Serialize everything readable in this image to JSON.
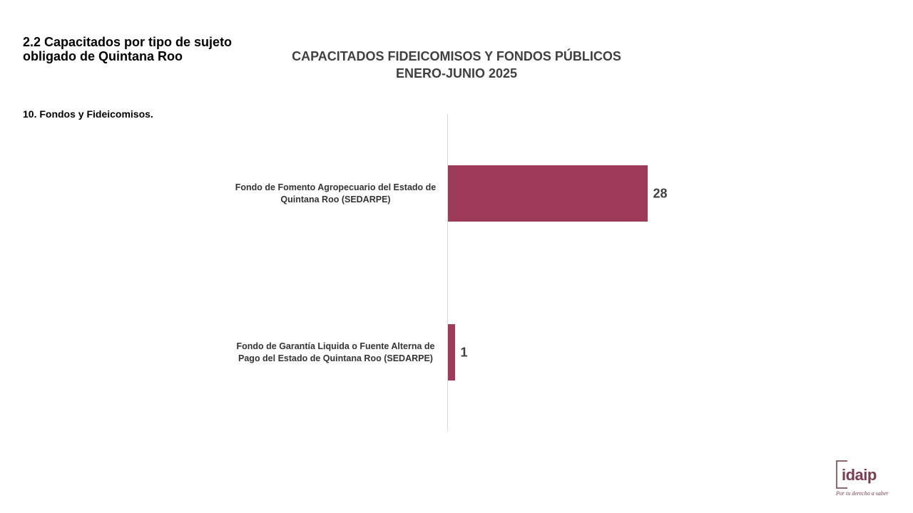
{
  "header": {
    "section_title": "2.2 Capacitados por tipo de sujeto obligado de Quintana Roo",
    "subsection": "10. Fondos y Fideicomisos."
  },
  "logo": {
    "name": "idaip",
    "tagline": "Por tu derecho a saber"
  },
  "chart_data": {
    "type": "bar",
    "orientation": "horizontal",
    "title_line1": "CAPACITADOS FIDEICOMISOS Y FONDOS PÚBLICOS",
    "title_line2": "ENERO-JUNIO 2025",
    "categories": [
      "Fondo de Fomento Agropecuario del Estado de Quintana Roo (SEDARPE)",
      "Fondo de Garantía Liquida o Fuente Alterna de Pago del Estado de Quintana Roo (SEDARPE)"
    ],
    "values": [
      28,
      1
    ],
    "value_labels": [
      "28",
      "1"
    ],
    "xlim": [
      0,
      28
    ],
    "grid": false,
    "legend": "none",
    "bar_color": "#9e3a5a"
  }
}
